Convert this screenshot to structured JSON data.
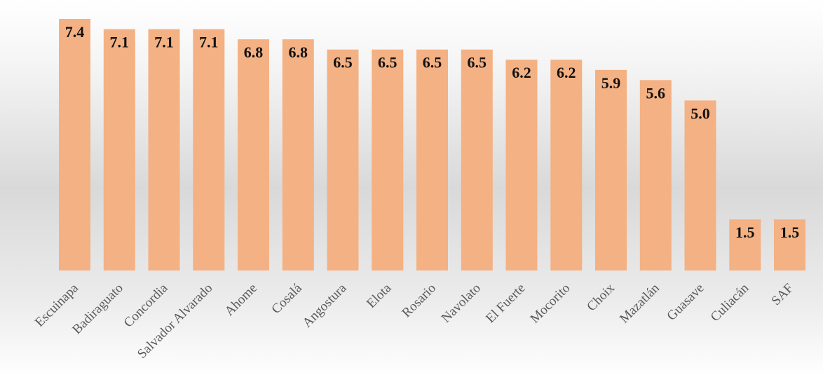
{
  "chart_data": {
    "type": "bar",
    "title": "",
    "xlabel": "",
    "ylabel": "",
    "ylim": [
      0,
      7.4
    ],
    "grid": false,
    "legend": "none",
    "categories": [
      "Escuinapa",
      "Badiraguato",
      "Concordia",
      "Salvador Alvarado",
      "Ahome",
      "Cosalá",
      "Angostura",
      "Elota",
      "Rosario",
      "Navolato",
      "El Fuerte",
      "Mocorito",
      "Choix",
      "Mazatlán",
      "Guasave",
      "Culiacán",
      "SAF"
    ],
    "values": [
      7.4,
      7.1,
      7.1,
      7.1,
      6.8,
      6.8,
      6.5,
      6.5,
      6.5,
      6.5,
      6.2,
      6.2,
      5.9,
      5.6,
      5.0,
      1.5,
      1.5
    ],
    "value_labels": [
      "7.4",
      "7.1",
      "7.1",
      "7.1",
      "6.8",
      "6.8",
      "6.5",
      "6.5",
      "6.5",
      "6.5",
      "6.2",
      "6.2",
      "5.9",
      "5.6",
      "5.0",
      "1.5",
      "1.5"
    ],
    "bar_color": "#F4B183",
    "label_color": "#111111",
    "category_color": "#595959"
  }
}
